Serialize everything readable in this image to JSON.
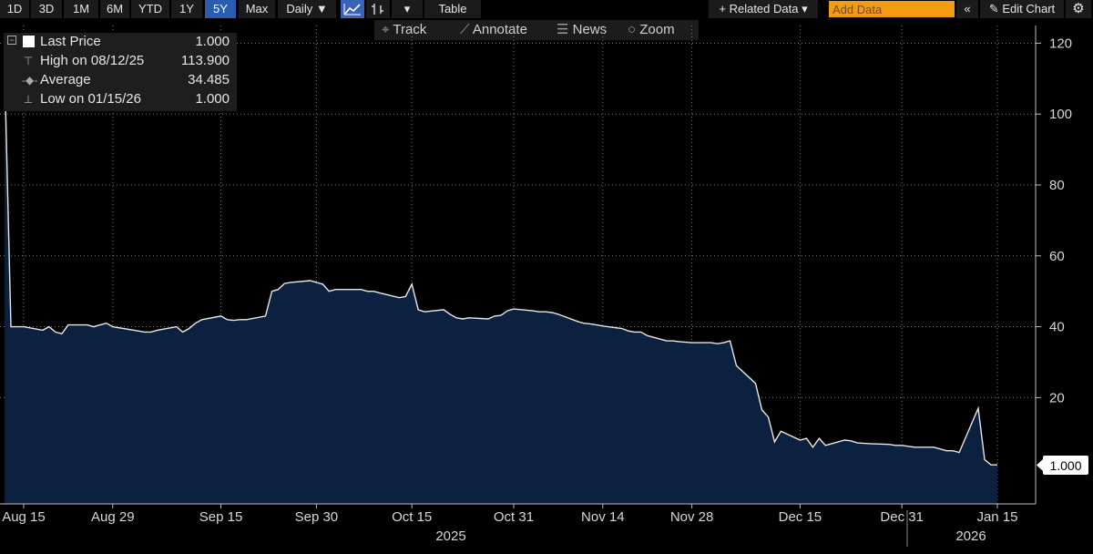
{
  "toolbar": {
    "ranges": [
      "1D",
      "3D",
      "1M",
      "6M",
      "YTD",
      "1Y",
      "5Y",
      "Max"
    ],
    "active_range": "5Y",
    "frequency": "Daily ▼",
    "dropdown_arrow": "▾",
    "table": "Table",
    "related_data": "+ Related Data ▾",
    "add_data_placeholder": "Add Data",
    "collapse": "«",
    "edit_chart": "✎ Edit Chart",
    "settings_icon": "⚙",
    "line_chart_icon": "line-chart-icon",
    "bar_chart_icon": "bar-chart-icon"
  },
  "subbar": {
    "track": "Track",
    "annotate": "Annotate",
    "news": "News",
    "zoom": "Zoom"
  },
  "legend": {
    "last_price_label": "Last Price",
    "last_price_value": "1.000",
    "high_label": "High on 08/12/25",
    "high_value": "113.900",
    "average_label": "Average",
    "average_value": "34.485",
    "low_label": "Low on 01/15/26",
    "low_value": "1.000"
  },
  "colors": {
    "background": "#000000",
    "line": "#e8e8e8",
    "fill": "#0c2140",
    "grid": "#7a7a7a",
    "active_tab": "#2a5db0",
    "add_data_field": "#f39c12"
  },
  "chart_data": {
    "type": "area",
    "ylim": [
      -10,
      125
    ],
    "y_ticks": [
      20,
      40,
      60,
      80,
      100,
      120
    ],
    "x_tick_labels": [
      "Aug 15",
      "Aug 29",
      "Sep 15",
      "Sep 30",
      "Oct 15",
      "Oct 31",
      "Nov 14",
      "Nov 28",
      "Dec 15",
      "Dec 31",
      "Jan 15"
    ],
    "year_labels": [
      "2025",
      "2026"
    ],
    "last_value_label": "1.000",
    "dates": [
      "2025-08-12",
      "2025-08-13",
      "2025-08-15",
      "2025-08-18",
      "2025-08-19",
      "2025-08-20",
      "2025-08-21",
      "2025-08-22",
      "2025-08-25",
      "2025-08-26",
      "2025-08-27",
      "2025-08-28",
      "2025-08-29",
      "2025-09-02",
      "2025-09-03",
      "2025-09-04",
      "2025-09-05",
      "2025-09-08",
      "2025-09-09",
      "2025-09-10",
      "2025-09-11",
      "2025-09-12",
      "2025-09-15",
      "2025-09-16",
      "2025-09-17",
      "2025-09-18",
      "2025-09-19",
      "2025-09-22",
      "2025-09-23",
      "2025-09-24",
      "2025-09-25",
      "2025-09-26",
      "2025-09-29",
      "2025-09-30",
      "2025-10-01",
      "2025-10-02",
      "2025-10-03",
      "2025-10-06",
      "2025-10-07",
      "2025-10-08",
      "2025-10-09",
      "2025-10-10",
      "2025-10-13",
      "2025-10-14",
      "2025-10-15",
      "2025-10-16",
      "2025-10-17",
      "2025-10-20",
      "2025-10-21",
      "2025-10-22",
      "2025-10-23",
      "2025-10-24",
      "2025-10-27",
      "2025-10-28",
      "2025-10-29",
      "2025-10-30",
      "2025-10-31",
      "2025-11-03",
      "2025-11-04",
      "2025-11-05",
      "2025-11-06",
      "2025-11-07",
      "2025-11-10",
      "2025-11-11",
      "2025-11-12",
      "2025-11-13",
      "2025-11-14",
      "2025-11-17",
      "2025-11-18",
      "2025-11-19",
      "2025-11-20",
      "2025-11-21",
      "2025-11-24",
      "2025-11-25",
      "2025-11-26",
      "2025-11-28",
      "2025-12-01",
      "2025-12-02",
      "2025-12-03",
      "2025-12-04",
      "2025-12-05",
      "2025-12-08",
      "2025-12-09",
      "2025-12-10",
      "2025-12-11",
      "2025-12-12",
      "2025-12-15",
      "2025-12-16",
      "2025-12-17",
      "2025-12-18",
      "2025-12-19",
      "2025-12-22",
      "2025-12-23",
      "2025-12-24",
      "2025-12-26",
      "2025-12-29",
      "2025-12-30",
      "2025-12-31",
      "2026-01-02",
      "2026-01-05",
      "2026-01-06",
      "2026-01-07",
      "2026-01-08",
      "2026-01-09",
      "2026-01-12",
      "2026-01-13",
      "2026-01-14",
      "2026-01-15"
    ],
    "series": [
      {
        "values": [
          113.9,
          40,
          40,
          39,
          40,
          38.5,
          38,
          40.5,
          40.5,
          40,
          40.5,
          41,
          40,
          38.8,
          38.5,
          38.5,
          39,
          40,
          38.5,
          39.5,
          41,
          42,
          43,
          42,
          41.8,
          42,
          42,
          43,
          50,
          50.5,
          52.2,
          52.5,
          53,
          52.5,
          52,
          50,
          50.5,
          50.5,
          50.5,
          50,
          50,
          49.5,
          48.2,
          48.5,
          52,
          44.8,
          44.2,
          44.8,
          43.5,
          42.5,
          42.2,
          42.5,
          42.2,
          43,
          43.2,
          44.5,
          45,
          44.5,
          44.2,
          44.2,
          44,
          43.5,
          41.5,
          41,
          40.8,
          40.5,
          40.2,
          39.5,
          38.8,
          38.5,
          38.5,
          37.5,
          36,
          36,
          35.8,
          35.5,
          35.5,
          35.2,
          35.5,
          36,
          29,
          24,
          16.5,
          14.5,
          7.5,
          10.5,
          8,
          8.5,
          6,
          8.5,
          6.5,
          8,
          7.8,
          7.2,
          7,
          6.8,
          6.5,
          6.5,
          6,
          6,
          5.5,
          5,
          5,
          4.5,
          17,
          2.5,
          1,
          1
        ]
      }
    ]
  }
}
